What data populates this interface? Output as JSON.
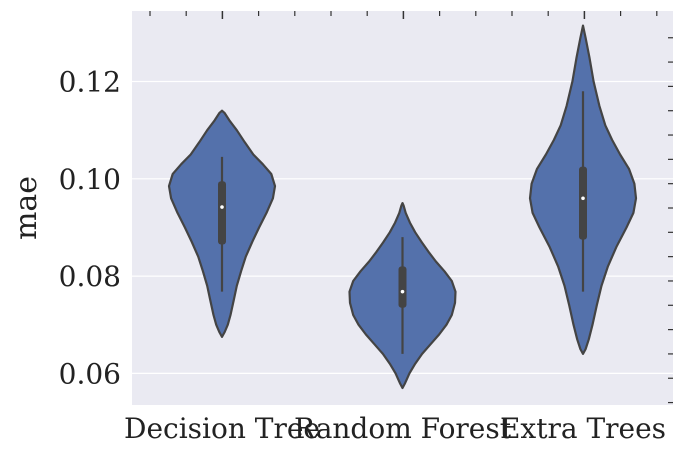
{
  "chart_data": {
    "type": "violin",
    "title": "",
    "xlabel": "",
    "ylabel": "mae",
    "categories": [
      "Decision Tree",
      "Random Forest",
      "Extra Trees"
    ],
    "ylim": [
      0.0535,
      0.1345
    ],
    "yticks": [
      0.06,
      0.08,
      0.1,
      0.12
    ],
    "ytick_labels": [
      "0.06",
      "0.08",
      "0.10",
      "0.12"
    ],
    "grid": true,
    "colors": {
      "background": "#eaeaf2",
      "violin_fill": "#5471ab",
      "violin_edge": "#444444",
      "box": "#444444",
      "median": "#ffffff",
      "grid": "#ffffff"
    },
    "violins": [
      {
        "category": "Decision Tree",
        "min": 0.0675,
        "max": 0.114,
        "whisker_low": 0.0768,
        "whisker_high": 0.1045,
        "q1": 0.0865,
        "q3": 0.0995,
        "median": 0.0942,
        "density": [
          [
            0.0675,
            0.0
          ],
          [
            0.0685,
            0.05
          ],
          [
            0.07,
            0.11
          ],
          [
            0.072,
            0.16
          ],
          [
            0.075,
            0.22
          ],
          [
            0.078,
            0.28
          ],
          [
            0.081,
            0.36
          ],
          [
            0.084,
            0.45
          ],
          [
            0.087,
            0.57
          ],
          [
            0.09,
            0.7
          ],
          [
            0.093,
            0.84
          ],
          [
            0.096,
            0.96
          ],
          [
            0.0985,
            1.0
          ],
          [
            0.101,
            0.93
          ],
          [
            0.103,
            0.77
          ],
          [
            0.105,
            0.59
          ],
          [
            0.1075,
            0.43
          ],
          [
            0.11,
            0.28
          ],
          [
            0.112,
            0.14
          ],
          [
            0.1135,
            0.05
          ],
          [
            0.114,
            0.0
          ]
        ]
      },
      {
        "category": "Random Forest",
        "min": 0.057,
        "max": 0.095,
        "whisker_low": 0.064,
        "whisker_high": 0.088,
        "q1": 0.0735,
        "q3": 0.082,
        "median": 0.0768,
        "density": [
          [
            0.057,
            0.0
          ],
          [
            0.058,
            0.05
          ],
          [
            0.06,
            0.13
          ],
          [
            0.062,
            0.24
          ],
          [
            0.064,
            0.37
          ],
          [
            0.066,
            0.53
          ],
          [
            0.068,
            0.69
          ],
          [
            0.07,
            0.83
          ],
          [
            0.072,
            0.93
          ],
          [
            0.0745,
            0.99
          ],
          [
            0.0768,
            1.0
          ],
          [
            0.079,
            0.93
          ],
          [
            0.081,
            0.79
          ],
          [
            0.083,
            0.63
          ],
          [
            0.085,
            0.49
          ],
          [
            0.087,
            0.36
          ],
          [
            0.089,
            0.24
          ],
          [
            0.091,
            0.14
          ],
          [
            0.093,
            0.06
          ],
          [
            0.0945,
            0.02
          ],
          [
            0.095,
            0.0
          ]
        ]
      },
      {
        "category": "Extra Trees",
        "min": 0.064,
        "max": 0.1315,
        "whisker_low": 0.0768,
        "whisker_high": 0.118,
        "q1": 0.0875,
        "q3": 0.1025,
        "median": 0.096,
        "density": [
          [
            0.064,
            0.0
          ],
          [
            0.065,
            0.05
          ],
          [
            0.067,
            0.11
          ],
          [
            0.07,
            0.18
          ],
          [
            0.074,
            0.26
          ],
          [
            0.078,
            0.35
          ],
          [
            0.082,
            0.47
          ],
          [
            0.086,
            0.63
          ],
          [
            0.09,
            0.82
          ],
          [
            0.093,
            0.95
          ],
          [
            0.096,
            1.0
          ],
          [
            0.099,
            0.97
          ],
          [
            0.102,
            0.87
          ],
          [
            0.105,
            0.7
          ],
          [
            0.108,
            0.55
          ],
          [
            0.111,
            0.42
          ],
          [
            0.115,
            0.31
          ],
          [
            0.12,
            0.2
          ],
          [
            0.125,
            0.12
          ],
          [
            0.129,
            0.05
          ],
          [
            0.1315,
            0.0
          ]
        ]
      }
    ]
  }
}
